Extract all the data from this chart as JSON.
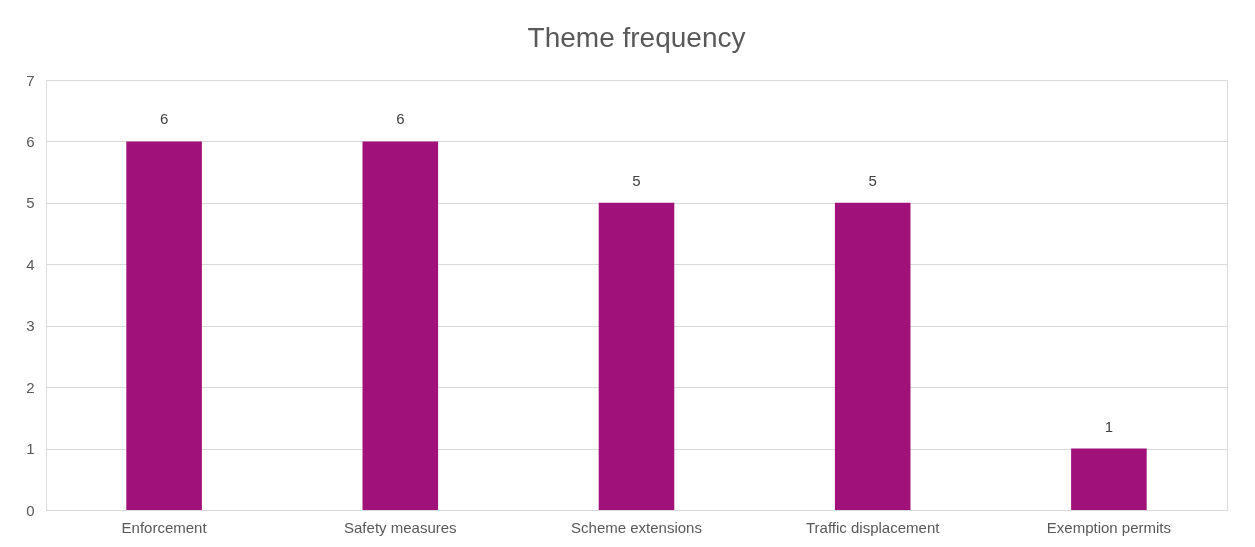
{
  "chart_data": {
    "type": "bar",
    "title": "Theme frequency",
    "categories": [
      "Enforcement",
      "Safety measures",
      "Scheme extensions",
      "Traffic displacement",
      "Exemption permits"
    ],
    "values": [
      6,
      6,
      5,
      5,
      1
    ],
    "color": "#a0127a",
    "ylim": [
      0,
      7
    ],
    "yticks": [
      0,
      1,
      2,
      3,
      4,
      5,
      6,
      7
    ],
    "grid": "y",
    "data_labels": true
  }
}
